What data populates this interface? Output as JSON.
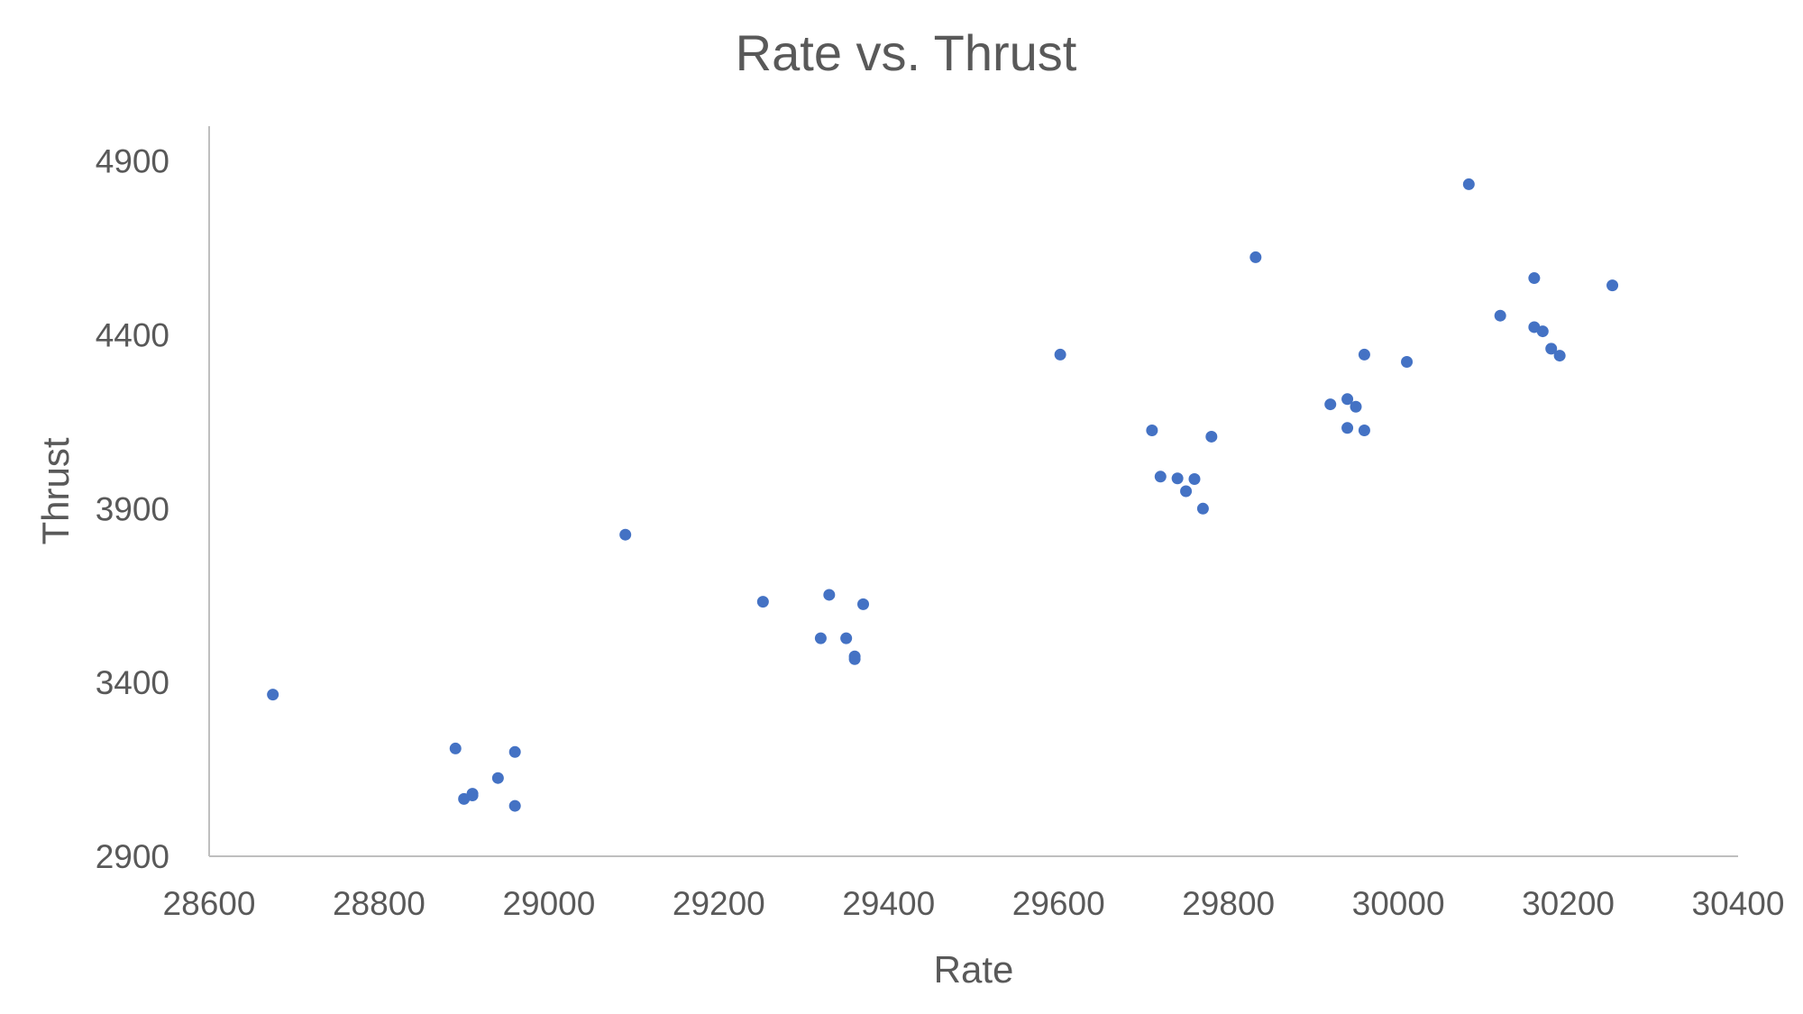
{
  "chart_data": {
    "type": "scatter",
    "title": "Rate vs. Thrust",
    "xlabel": "Rate",
    "ylabel": "Thrust",
    "xlim": [
      28600,
      30400
    ],
    "ylim": [
      2900,
      5000
    ],
    "x_ticks": [
      "28600",
      "28800",
      "29000",
      "29200",
      "29400",
      "29600",
      "29800",
      "30000",
      "30200",
      "30400"
    ],
    "y_ticks": [
      "2900",
      "3400",
      "3900",
      "4400",
      "4900"
    ],
    "grid": false,
    "legend": "none",
    "marker_color": "#4472C4",
    "series": [
      {
        "points": [
          [
            28675,
            3365
          ],
          [
            28890,
            3210
          ],
          [
            28900,
            3065
          ],
          [
            28910,
            3075
          ],
          [
            28910,
            3080
          ],
          [
            28940,
            3125
          ],
          [
            28960,
            3200
          ],
          [
            28960,
            3045
          ],
          [
            29090,
            3825
          ],
          [
            29252,
            3632
          ],
          [
            29320,
            3527
          ],
          [
            29330,
            3652
          ],
          [
            29350,
            3527
          ],
          [
            29360,
            3475
          ],
          [
            29360,
            3467
          ],
          [
            29370,
            3625
          ],
          [
            29602,
            4343
          ],
          [
            29710,
            4125
          ],
          [
            29720,
            3992
          ],
          [
            29740,
            3987
          ],
          [
            29750,
            3950
          ],
          [
            29760,
            3985
          ],
          [
            29770,
            3900
          ],
          [
            29780,
            4107
          ],
          [
            29832,
            4623
          ],
          [
            29920,
            4200
          ],
          [
            29940,
            4215
          ],
          [
            29940,
            4132
          ],
          [
            29950,
            4193
          ],
          [
            29960,
            4343
          ],
          [
            29960,
            4125
          ],
          [
            30010,
            4322
          ],
          [
            30083,
            4833
          ],
          [
            30120,
            4455
          ],
          [
            30160,
            4563
          ],
          [
            30160,
            4422
          ],
          [
            30170,
            4410
          ],
          [
            30180,
            4360
          ],
          [
            30190,
            4340
          ],
          [
            30252,
            4542
          ]
        ]
      }
    ]
  }
}
